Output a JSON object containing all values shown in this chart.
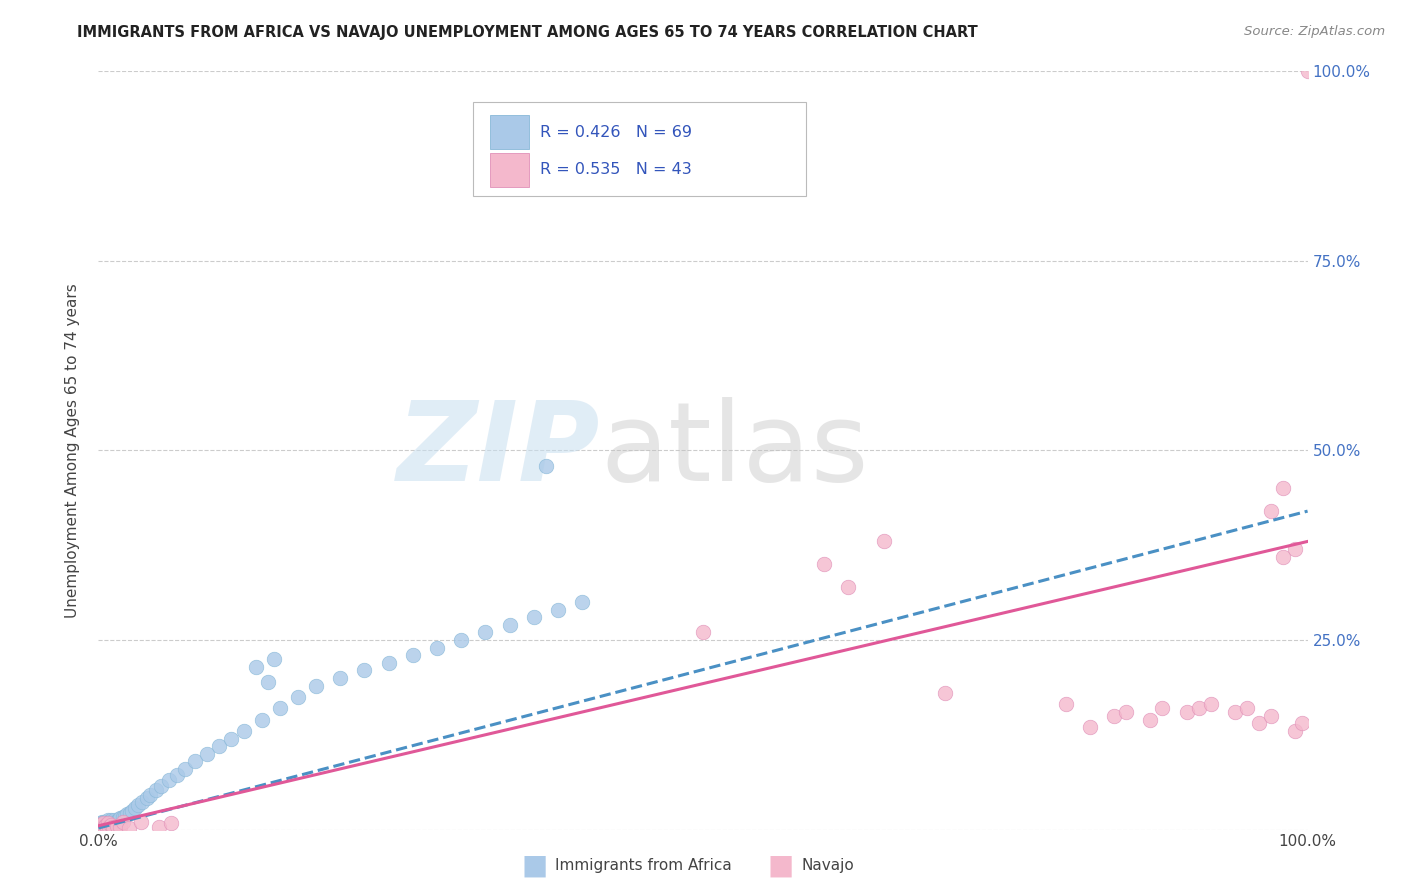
{
  "title": "IMMIGRANTS FROM AFRICA VS NAVAJO UNEMPLOYMENT AMONG AGES 65 TO 74 YEARS CORRELATION CHART",
  "source": "Source: ZipAtlas.com",
  "ylabel": "Unemployment Among Ages 65 to 74 years",
  "legend_label1": "R = 0.426   N = 69",
  "legend_label2": "R = 0.535   N = 43",
  "legend_name1": "Immigrants from Africa",
  "legend_name2": "Navajo",
  "blue_scatter_color": "#aac9e8",
  "blue_line_color": "#4a90c4",
  "pink_scatter_color": "#f4b8cc",
  "pink_line_color": "#e05898",
  "rn_color": "#3355bb",
  "right_tick_color": "#4472c4",
  "blue_x": [
    0.001,
    0.002,
    0.002,
    0.003,
    0.003,
    0.003,
    0.004,
    0.004,
    0.005,
    0.005,
    0.006,
    0.006,
    0.007,
    0.007,
    0.008,
    0.008,
    0.009,
    0.009,
    0.01,
    0.01,
    0.011,
    0.012,
    0.013,
    0.014,
    0.015,
    0.016,
    0.017,
    0.018,
    0.02,
    0.022,
    0.024,
    0.026,
    0.028,
    0.03,
    0.033,
    0.036,
    0.04,
    0.043,
    0.048,
    0.052,
    0.058,
    0.065,
    0.072,
    0.08,
    0.09,
    0.1,
    0.11,
    0.12,
    0.135,
    0.15,
    0.165,
    0.18,
    0.2,
    0.22,
    0.24,
    0.26,
    0.28,
    0.3,
    0.32,
    0.34,
    0.36,
    0.38,
    0.4,
    0.13,
    0.14,
    0.145,
    0.37,
    0.005,
    0.006
  ],
  "blue_y": [
    0.005,
    0.008,
    0.002,
    0.01,
    0.005,
    0.002,
    0.008,
    0.003,
    0.01,
    0.003,
    0.008,
    0.002,
    0.01,
    0.004,
    0.012,
    0.003,
    0.01,
    0.004,
    0.012,
    0.004,
    0.01,
    0.008,
    0.012,
    0.008,
    0.01,
    0.012,
    0.014,
    0.015,
    0.016,
    0.018,
    0.02,
    0.022,
    0.025,
    0.028,
    0.032,
    0.036,
    0.042,
    0.046,
    0.052,
    0.058,
    0.065,
    0.072,
    0.08,
    0.09,
    0.1,
    0.11,
    0.12,
    0.13,
    0.145,
    0.16,
    0.175,
    0.19,
    0.2,
    0.21,
    0.22,
    0.23,
    0.24,
    0.25,
    0.26,
    0.27,
    0.28,
    0.29,
    0.3,
    0.215,
    0.195,
    0.225,
    0.48,
    0.005,
    0.002
  ],
  "pink_x": [
    0.001,
    0.002,
    0.003,
    0.004,
    0.005,
    0.006,
    0.007,
    0.008,
    0.009,
    0.01,
    0.012,
    0.015,
    0.018,
    0.02,
    0.025,
    0.035,
    0.05,
    0.06,
    0.5,
    0.6,
    0.62,
    0.65,
    0.7,
    0.8,
    0.82,
    0.84,
    0.85,
    0.87,
    0.88,
    0.9,
    0.91,
    0.92,
    0.94,
    0.95,
    0.96,
    0.97,
    0.98,
    0.99,
    0.99,
    0.995,
    1.0,
    0.98,
    0.97
  ],
  "pink_y": [
    0.004,
    0.006,
    0.003,
    0.008,
    0.004,
    0.006,
    0.003,
    0.008,
    0.004,
    0.006,
    0.003,
    0.005,
    0.004,
    0.01,
    0.002,
    0.01,
    0.003,
    0.008,
    0.26,
    0.35,
    0.32,
    0.38,
    0.18,
    0.165,
    0.135,
    0.15,
    0.155,
    0.145,
    0.16,
    0.155,
    0.16,
    0.165,
    0.155,
    0.16,
    0.14,
    0.15,
    0.45,
    0.37,
    0.13,
    0.14,
    1.0,
    0.36,
    0.42
  ],
  "blue_line": [
    0.0,
    0.002,
    1.0,
    0.42
  ],
  "pink_line": [
    0.0,
    0.005,
    1.0,
    0.38
  ]
}
